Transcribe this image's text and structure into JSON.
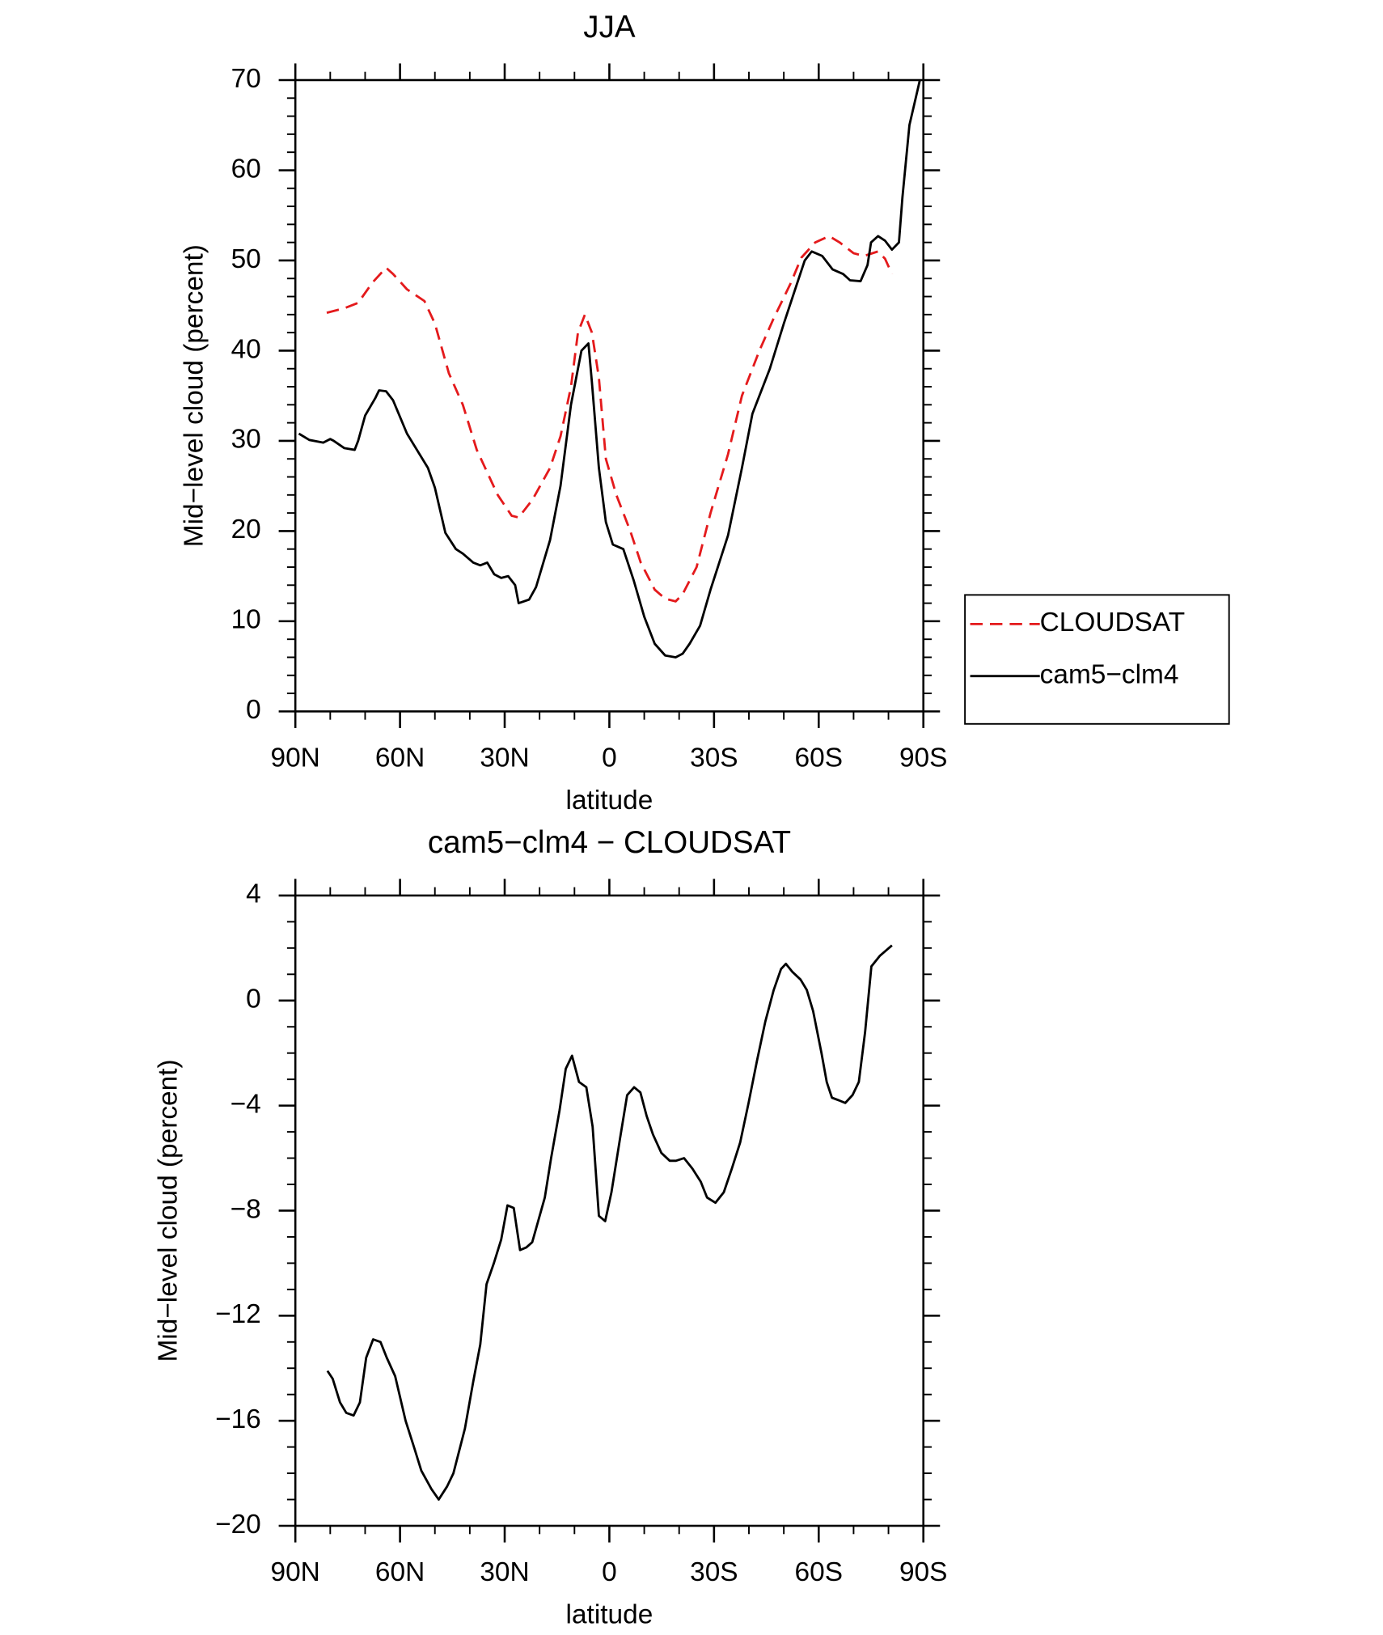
{
  "chart_data": [
    {
      "type": "line",
      "title": "JJA",
      "xlabel": "latitude",
      "ylabel": "Mid−level cloud (percent)",
      "xlim": [
        90,
        -90
      ],
      "xticks": [
        {
          "value": 90,
          "label": "90N"
        },
        {
          "value": 60,
          "label": "60N"
        },
        {
          "value": 30,
          "label": "30N"
        },
        0,
        {
          "value": -30,
          "label": "30S"
        },
        {
          "value": -60,
          "label": "60S"
        },
        {
          "value": -90,
          "label": "90S"
        }
      ],
      "ylim": [
        0,
        70
      ],
      "yticks": [
        0,
        10,
        20,
        30,
        40,
        50,
        60,
        70
      ],
      "legend": "right",
      "series": [
        {
          "name": "CLOUDSAT",
          "color": "#e41a1c",
          "dashed": true,
          "x": [
            81,
            76,
            72,
            68,
            64,
            62,
            58,
            53,
            50,
            46,
            42,
            38,
            32,
            28,
            26,
            22,
            17,
            14,
            11,
            9,
            7,
            5,
            3,
            1,
            -2,
            -6,
            -9,
            -13,
            -16,
            -19,
            -21,
            -25,
            -29,
            -34,
            -38,
            -43,
            -47,
            -52,
            -55,
            -59,
            -63,
            -66,
            -70,
            -73,
            -77,
            -79,
            -81
          ],
          "values": [
            44.2,
            44.7,
            45.3,
            47.5,
            49.2,
            48.5,
            46.8,
            45.5,
            43,
            37.5,
            34,
            29,
            24,
            21.7,
            21.5,
            23.5,
            27,
            30.5,
            36,
            42,
            44,
            42,
            37,
            28,
            24,
            20,
            16.5,
            13.5,
            12.5,
            12.2,
            13,
            16,
            22,
            28.5,
            35,
            40,
            43.5,
            47.5,
            50.3,
            52,
            52.7,
            52,
            50.8,
            50.5,
            51,
            50.2,
            48.5
          ]
        },
        {
          "name": "cam5−clm4",
          "color": "#000000",
          "dashed": false,
          "x": [
            89,
            86,
            82,
            80,
            79,
            76,
            73,
            72,
            70,
            67,
            66,
            64,
            62,
            58,
            52,
            50,
            47,
            44,
            42,
            39,
            37,
            35,
            33,
            31,
            29,
            27,
            26,
            23,
            21,
            17,
            14,
            11,
            8,
            6,
            5,
            3,
            1,
            -1,
            -4,
            -7,
            -10,
            -13,
            -16,
            -19,
            -21,
            -23,
            -26,
            -29,
            -34,
            -38,
            -41,
            -46,
            -50,
            -53,
            -56,
            -58,
            -61,
            -64,
            -67,
            -69,
            -72,
            -74,
            -75,
            -77,
            -79,
            -81,
            -83,
            -84,
            -86,
            -89
          ],
          "values": [
            30.8,
            30.1,
            29.8,
            30.2,
            30,
            29.2,
            29,
            30,
            32.8,
            34.8,
            35.6,
            35.5,
            34.5,
            30.8,
            27,
            24.8,
            19.8,
            18,
            17.5,
            16.5,
            16.2,
            16.5,
            15.2,
            14.8,
            15,
            14,
            12,
            12.4,
            13.8,
            19,
            25,
            34,
            40,
            40.8,
            36.5,
            27,
            21,
            18.5,
            18,
            14.5,
            10.5,
            7.5,
            6.2,
            6,
            6.4,
            7.5,
            9.5,
            13.5,
            19.5,
            27,
            33,
            38,
            43,
            46.5,
            50,
            51,
            50.5,
            49,
            48.5,
            47.8,
            47.7,
            49.5,
            52,
            52.7,
            52.2,
            51.2,
            52,
            57,
            65,
            70
          ]
        }
      ]
    },
    {
      "type": "line",
      "title": "cam5−clm4 − CLOUDSAT",
      "xlabel": "latitude",
      "ylabel": "Mid−level cloud (percent)",
      "xlim": [
        90,
        -90
      ],
      "xticks": [
        {
          "value": 90,
          "label": "90N"
        },
        {
          "value": 60,
          "label": "60N"
        },
        {
          "value": 30,
          "label": "30N"
        },
        0,
        {
          "value": -30,
          "label": "30S"
        },
        {
          "value": -60,
          "label": "60S"
        },
        {
          "value": -90,
          "label": "90S"
        }
      ],
      "ylim": [
        -20,
        4
      ],
      "yticks": [
        {
          "value": -20,
          "label": "−20"
        },
        {
          "value": -16,
          "label": "−16"
        },
        {
          "value": -12,
          "label": "−12"
        },
        {
          "value": -8,
          "label": "−8"
        },
        {
          "value": -4,
          "label": "−4"
        },
        0,
        4
      ],
      "series": [
        {
          "color": "#000000",
          "dashed": false,
          "x": [
            80.8,
            79.3,
            77.2,
            75.4,
            73.3,
            71.5,
            69.7,
            67.7,
            65.6,
            63.8,
            61.4,
            58.4,
            56,
            53.9,
            51,
            48.9,
            46.5,
            44.7,
            41.4,
            39,
            37,
            35.2,
            33.1,
            31,
            29.2,
            27.4,
            25.6,
            23.8,
            22.1,
            18.5,
            16.7,
            14.3,
            12.5,
            10.7,
            8.7,
            6.6,
            4.8,
            3,
            1.2,
            -0.6,
            -3,
            -5.1,
            -7.1,
            -8.9,
            -10.7,
            -12.5,
            -14.9,
            -17.3,
            -19.1,
            -21.4,
            -23.8,
            -26.2,
            -28,
            -30.4,
            -32.8,
            -35.1,
            -37.5,
            -39.9,
            -42.3,
            -44.7,
            -47.1,
            -49.2,
            -50.6,
            -52.4,
            -54.8,
            -56.6,
            -58.4,
            -60.8,
            -62.3,
            -63.8,
            -65.8,
            -67.6,
            -69.7,
            -71.5,
            -73.3,
            -75.1,
            -77.5,
            -81
          ],
          "values": [
            -14.1,
            -14.4,
            -15.3,
            -15.7,
            -15.8,
            -15.3,
            -13.6,
            -12.9,
            -13,
            -13.6,
            -14.3,
            -16,
            -17,
            -17.9,
            -18.6,
            -19,
            -18.5,
            -18,
            -16.3,
            -14.5,
            -13.1,
            -10.8,
            -10,
            -9.1,
            -7.8,
            -7.9,
            -9.5,
            -9.4,
            -9.2,
            -7.5,
            -6,
            -4.2,
            -2.6,
            -2.1,
            -3.1,
            -3.3,
            -4.8,
            -8.2,
            -8.4,
            -7.3,
            -5.3,
            -3.6,
            -3.3,
            -3.5,
            -4.4,
            -5.1,
            -5.8,
            -6.1,
            -6.1,
            -6,
            -6.4,
            -6.9,
            -7.5,
            -7.7,
            -7.3,
            -6.4,
            -5.4,
            -3.9,
            -2.3,
            -0.8,
            0.4,
            1.2,
            1.4,
            1.1,
            0.8,
            0.4,
            -0.4,
            -2,
            -3.1,
            -3.7,
            -3.8,
            -3.9,
            -3.6,
            -3.1,
            -1.2,
            1.3,
            1.7,
            2.1
          ]
        }
      ]
    }
  ]
}
